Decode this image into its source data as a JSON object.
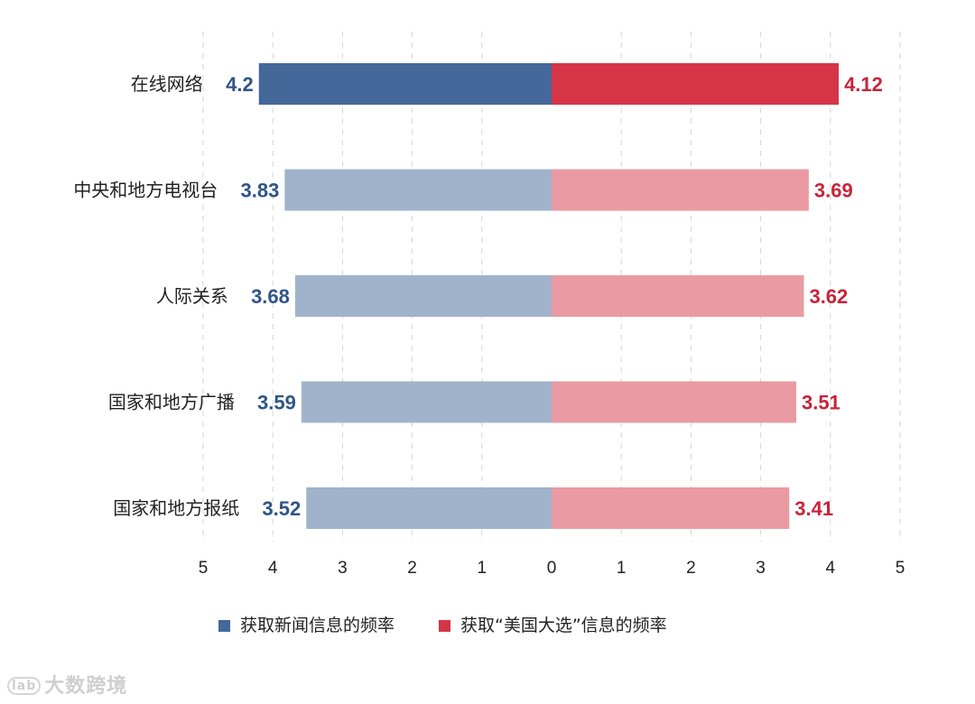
{
  "chart_data": {
    "type": "bar",
    "orientation": "horizontal-diverging",
    "categories": [
      "在线网络",
      "中央和地方电视台",
      "人际关系",
      "国家和地方广播",
      "国家和地方报纸"
    ],
    "series": [
      {
        "name": "获取新闻信息的频率",
        "side": "left",
        "values": [
          4.2,
          3.83,
          3.68,
          3.59,
          3.52
        ],
        "value_labels": [
          "4.2",
          "3.83",
          "3.68",
          "3.59",
          "3.52"
        ],
        "color": "#44689a",
        "color_light": "#a0b3cb"
      },
      {
        "name": "获取“美国大选”信息的频率",
        "side": "right",
        "values": [
          4.12,
          3.69,
          3.62,
          3.51,
          3.41
        ],
        "value_labels": [
          "4.12",
          "3.69",
          "3.62",
          "3.51",
          "3.41"
        ],
        "color": "#d63447",
        "color_light": "#ea9aa2"
      }
    ],
    "highlight_index": 0,
    "xlim": [
      -5,
      5
    ],
    "ticks": [
      -5,
      -4,
      -3,
      -2,
      -1,
      0,
      1,
      2,
      3,
      4,
      5
    ],
    "tick_labels": [
      "5",
      "4",
      "3",
      "2",
      "1",
      "0",
      "1",
      "2",
      "3",
      "4",
      "5"
    ],
    "grid": "vertical-dashed",
    "legend_position": "bottom"
  },
  "watermark": {
    "icon_text": "lab",
    "text": "大数跨境"
  }
}
